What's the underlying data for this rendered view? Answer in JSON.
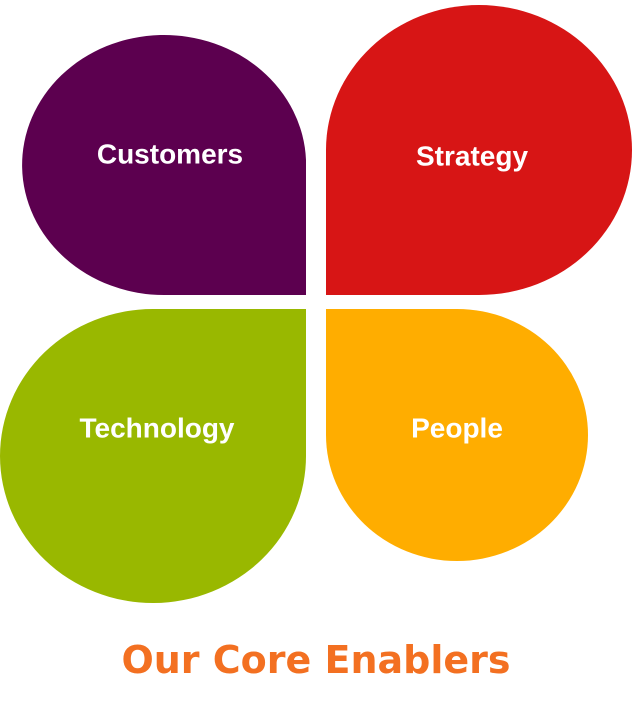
{
  "petals": [
    {
      "label": "Customers",
      "color": "#5c004f"
    },
    {
      "label": "Strategy",
      "color": "#d71515"
    },
    {
      "label": "Technology",
      "color": "#99b800"
    },
    {
      "label": "People",
      "color": "#ffad00"
    }
  ],
  "caption": {
    "text": "Our Core Enablers",
    "color": "#f37021"
  }
}
